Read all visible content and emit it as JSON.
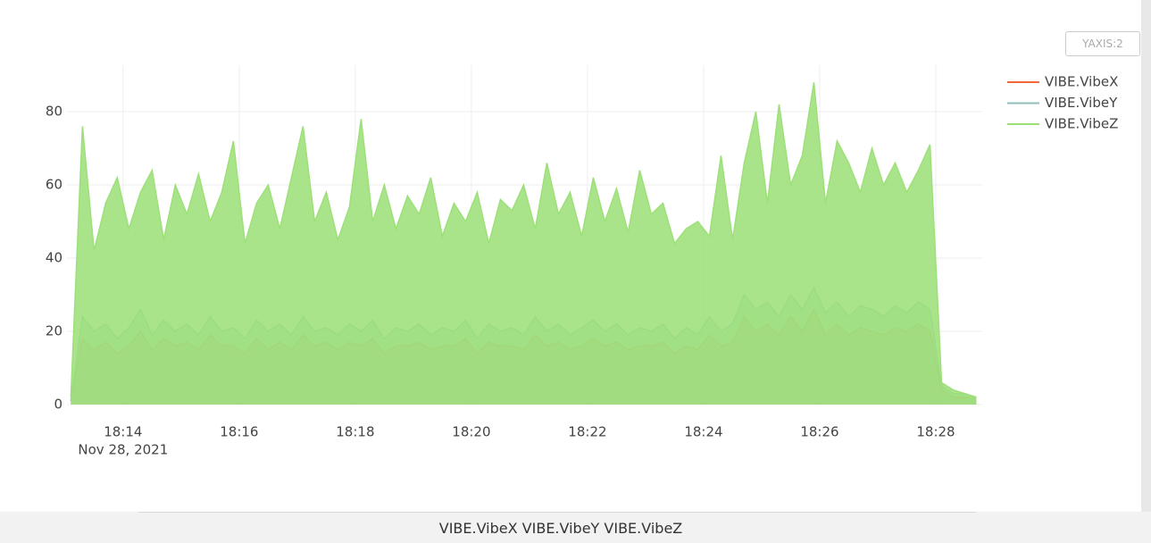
{
  "button": "YAXIS:2",
  "footer": "VIBE.VibeX VIBE.VibeY VIBE.VibeZ",
  "chart_data": {
    "type": "line",
    "x": [
      "2021-11-28 18:13:06",
      "2021-11-28 18:13:18",
      "2021-11-28 18:13:30",
      "2021-11-28 18:13:42",
      "2021-11-28 18:13:54",
      "2021-11-28 18:14:06",
      "2021-11-28 18:14:18",
      "2021-11-28 18:14:30",
      "2021-11-28 18:14:42",
      "2021-11-28 18:14:54",
      "2021-11-28 18:15:06",
      "2021-11-28 18:15:18",
      "2021-11-28 18:15:30",
      "2021-11-28 18:15:42",
      "2021-11-28 18:15:54",
      "2021-11-28 18:16:06",
      "2021-11-28 18:16:18",
      "2021-11-28 18:16:30",
      "2021-11-28 18:16:42",
      "2021-11-28 18:16:54",
      "2021-11-28 18:17:06",
      "2021-11-28 18:17:18",
      "2021-11-28 18:17:30",
      "2021-11-28 18:17:42",
      "2021-11-28 18:17:54",
      "2021-11-28 18:18:06",
      "2021-11-28 18:18:18",
      "2021-11-28 18:18:30",
      "2021-11-28 18:18:42",
      "2021-11-28 18:18:54",
      "2021-11-28 18:19:06",
      "2021-11-28 18:19:18",
      "2021-11-28 18:19:30",
      "2021-11-28 18:19:42",
      "2021-11-28 18:19:54",
      "2021-11-28 18:20:06",
      "2021-11-28 18:20:18",
      "2021-11-28 18:20:30",
      "2021-11-28 18:20:42",
      "2021-11-28 18:20:54",
      "2021-11-28 18:21:06",
      "2021-11-28 18:21:18",
      "2021-11-28 18:21:30",
      "2021-11-28 18:21:42",
      "2021-11-28 18:21:54",
      "2021-11-28 18:22:06",
      "2021-11-28 18:22:18",
      "2021-11-28 18:22:30",
      "2021-11-28 18:22:42",
      "2021-11-28 18:22:54",
      "2021-11-28 18:23:06",
      "2021-11-28 18:23:18",
      "2021-11-28 18:23:30",
      "2021-11-28 18:23:42",
      "2021-11-28 18:23:54",
      "2021-11-28 18:24:06",
      "2021-11-28 18:24:18",
      "2021-11-28 18:24:30",
      "2021-11-28 18:24:42",
      "2021-11-28 18:24:54",
      "2021-11-28 18:25:06",
      "2021-11-28 18:25:18",
      "2021-11-28 18:25:30",
      "2021-11-28 18:25:42",
      "2021-11-28 18:25:54",
      "2021-11-28 18:26:06",
      "2021-11-28 18:26:18",
      "2021-11-28 18:26:30",
      "2021-11-28 18:26:42",
      "2021-11-28 18:26:54",
      "2021-11-28 18:27:06",
      "2021-11-28 18:27:18",
      "2021-11-28 18:27:30",
      "2021-11-28 18:27:42",
      "2021-11-28 18:27:54",
      "2021-11-28 18:28:06",
      "2021-11-28 18:28:18",
      "2021-11-28 18:28:30",
      "2021-11-28 18:28:42"
    ],
    "series": [
      {
        "name": "VIBE.VibeX",
        "color": "#f4673b",
        "values": [
          1,
          18,
          15,
          17,
          14,
          16,
          20,
          15,
          18,
          16,
          17,
          15,
          19,
          16,
          16,
          14,
          18,
          15,
          17,
          15,
          19,
          16,
          17,
          15,
          17,
          16,
          18,
          14,
          16,
          16,
          17,
          15,
          16,
          16,
          18,
          14,
          17,
          16,
          16,
          15,
          19,
          16,
          17,
          15,
          16,
          18,
          16,
          17,
          15,
          16,
          16,
          17,
          14,
          16,
          15,
          19,
          16,
          17,
          24,
          20,
          22,
          19,
          24,
          20,
          26,
          19,
          22,
          19,
          21,
          20,
          19,
          21,
          20,
          22,
          20,
          4,
          2,
          2,
          2
        ]
      },
      {
        "name": "VIBE.VibeY",
        "color": "#8dbfb8",
        "values": [
          1,
          24,
          20,
          22,
          18,
          21,
          26,
          19,
          23,
          20,
          22,
          19,
          24,
          20,
          21,
          18,
          23,
          20,
          22,
          19,
          24,
          20,
          21,
          19,
          22,
          20,
          23,
          18,
          21,
          20,
          22,
          19,
          21,
          20,
          23,
          18,
          22,
          20,
          21,
          19,
          24,
          20,
          22,
          19,
          21,
          23,
          20,
          22,
          19,
          21,
          20,
          22,
          18,
          21,
          19,
          24,
          20,
          22,
          30,
          26,
          28,
          24,
          30,
          26,
          32,
          25,
          28,
          24,
          27,
          26,
          24,
          27,
          25,
          28,
          26,
          5,
          3,
          3,
          2
        ]
      },
      {
        "name": "VIBE.VibeZ",
        "color": "#9de07a",
        "values": [
          2,
          76,
          42,
          55,
          62,
          48,
          58,
          64,
          45,
          60,
          52,
          63,
          50,
          58,
          72,
          44,
          55,
          60,
          48,
          62,
          76,
          50,
          58,
          45,
          54,
          78,
          50,
          60,
          48,
          57,
          52,
          62,
          46,
          55,
          50,
          58,
          44,
          56,
          53,
          60,
          48,
          66,
          52,
          58,
          46,
          62,
          50,
          59,
          47,
          64,
          52,
          55,
          44,
          48,
          50,
          46,
          68,
          45,
          66,
          80,
          55,
          82,
          60,
          68,
          88,
          55,
          72,
          66,
          58,
          70,
          60,
          66,
          58,
          64,
          71,
          6,
          4,
          3,
          2
        ]
      }
    ],
    "xlim": [
      "2021-11-28 18:13:02",
      "2021-11-28 18:28:48"
    ],
    "xticks": [
      {
        "value": "2021-11-28 18:14:00",
        "label": "18:14"
      },
      {
        "value": "2021-11-28 18:16:00",
        "label": "18:16"
      },
      {
        "value": "2021-11-28 18:18:00",
        "label": "18:18"
      },
      {
        "value": "2021-11-28 18:20:00",
        "label": "18:20"
      },
      {
        "value": "2021-11-28 18:22:00",
        "label": "18:22"
      },
      {
        "value": "2021-11-28 18:24:00",
        "label": "18:24"
      },
      {
        "value": "2021-11-28 18:26:00",
        "label": "18:26"
      },
      {
        "value": "2021-11-28 18:28:00",
        "label": "18:28"
      }
    ],
    "x_date_label": "Nov 28, 2021",
    "ylim": [
      0,
      92.7
    ],
    "yticks": [
      0,
      20,
      40,
      60,
      80
    ],
    "grid": true,
    "legend": "top-right"
  }
}
